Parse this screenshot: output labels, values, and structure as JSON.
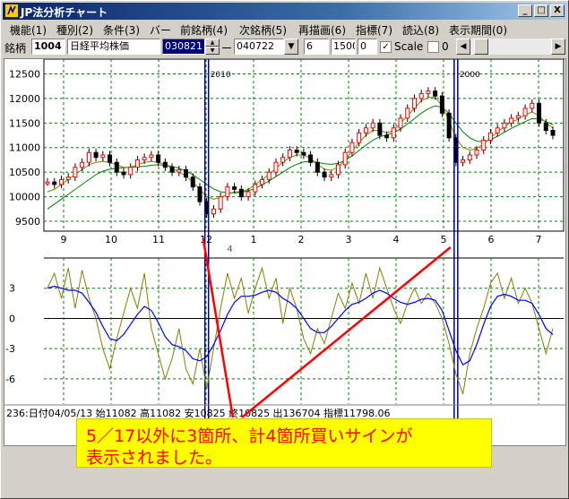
{
  "window": {
    "title": "JP法分析チャート"
  },
  "menu": [
    "機能(1)",
    "種別(2)",
    "条件(3)",
    "バー",
    "前銘柄(4)",
    "次銘柄(5)",
    "再描画(6)",
    "指標(7)",
    "読込(8)",
    "表示期間(0)"
  ],
  "toolbar": {
    "ticker_label": "銘柄",
    "code": "1004",
    "name": "日経平均株価",
    "date_from": "030821",
    "dash": "ー",
    "date_to": "040722",
    "period": "6",
    "value1": "1500",
    "value2": "0",
    "scale_label": "Scale",
    "scale_checked": true,
    "opt_value": "0",
    "check_mark": "✓",
    "arrow_left": "◀",
    "arrow_right": "▶",
    "dropdown_arrow": "▼",
    "spin_up": "▲",
    "spin_down": "▼"
  },
  "window_buttons": [
    "_",
    "□",
    "X"
  ],
  "chart_data": {
    "type": "line",
    "price_axis": {
      "ticks": [
        "12500",
        "12000",
        "11500",
        "11000",
        "10500",
        "10000",
        "9500"
      ],
      "range": [
        9300,
        12800
      ]
    },
    "x_ticks": [
      "9",
      "10",
      "11",
      "12",
      "1",
      "2",
      "3",
      "4",
      "5",
      "6",
      "7"
    ],
    "year_mark": "4",
    "signal_labels": [
      "2010",
      "2000"
    ],
    "oscillator_axis": {
      "ticks": [
        "3",
        "0",
        "-3",
        "-6"
      ],
      "range": [
        -8.5,
        6
      ]
    },
    "price_close": [
      10300,
      10250,
      10350,
      10400,
      10600,
      10700,
      10900,
      10800,
      10850,
      10700,
      10500,
      10450,
      10600,
      10750,
      10800,
      10850,
      10700,
      10600,
      10500,
      10550,
      10400,
      10200,
      9900,
      9650,
      9750,
      10000,
      10200,
      10150,
      10000,
      10100,
      10250,
      10350,
      10500,
      10700,
      10800,
      10950,
      10900,
      10850,
      10700,
      10500,
      10400,
      10450,
      10650,
      10900,
      11100,
      11300,
      11400,
      11500,
      11250,
      11200,
      11400,
      11600,
      11800,
      12000,
      12100,
      12150,
      12050,
      11700,
      11200,
      10700,
      10750,
      10850,
      10950,
      11150,
      11300,
      11400,
      11500,
      11600,
      11650,
      11800,
      11900,
      11500,
      11350,
      11250
    ],
    "ma_short": [
      10100,
      10150,
      10250,
      10350,
      10450,
      10550,
      10650,
      10700,
      10720,
      10700,
      10650,
      10600,
      10600,
      10650,
      10700,
      10720,
      10700,
      10650,
      10580,
      10500,
      10420,
      10300,
      10150,
      10000,
      9950,
      9980,
      10050,
      10100,
      10100,
      10150,
      10250,
      10350,
      10450,
      10580,
      10700,
      10800,
      10850,
      10850,
      10780,
      10660,
      10560,
      10540,
      10600,
      10750,
      10930,
      11100,
      11250,
      11350,
      11350,
      11300,
      11350,
      11500,
      11650,
      11800,
      11950,
      12020,
      12020,
      11850,
      11550,
      11200,
      11000,
      10950,
      10980,
      11080,
      11200,
      11320,
      11420,
      11520,
      11580,
      11670,
      11720,
      11650,
      11500,
      11400
    ],
    "ma_long": [
      9750,
      9850,
      9950,
      10050,
      10150,
      10250,
      10350,
      10450,
      10520,
      10560,
      10580,
      10590,
      10600,
      10610,
      10620,
      10640,
      10650,
      10640,
      10620,
      10580,
      10520,
      10450,
      10350,
      10250,
      10160,
      10100,
      10080,
      10080,
      10090,
      10120,
      10170,
      10240,
      10320,
      10410,
      10500,
      10590,
      10660,
      10710,
      10720,
      10700,
      10670,
      10660,
      10680,
      10740,
      10830,
      10940,
      11050,
      11150,
      11220,
      11260,
      11300,
      11380,
      11480,
      11590,
      11700,
      11790,
      11850,
      11820,
      11700,
      11500,
      11320,
      11200,
      11130,
      11120,
      11160,
      11230,
      11310,
      11390,
      11460,
      11530,
      11590,
      11580,
      11530,
      11470
    ],
    "osc_fast": [
      3,
      4.5,
      2,
      5,
      1,
      4.8,
      2,
      0,
      -3,
      -5,
      -2,
      0.5,
      3,
      1,
      4.5,
      -1,
      -3.5,
      -6,
      -4,
      -1,
      -5,
      -6.5,
      -3,
      -7,
      -3,
      1,
      4.5,
      2,
      4,
      0.5,
      3,
      5,
      2,
      4,
      -0.5,
      3,
      1,
      -2,
      -3.5,
      -1,
      -2.5,
      0,
      2.5,
      1,
      3.5,
      1.5,
      4.5,
      2,
      5,
      3,
      1,
      -0.5,
      1.5,
      3,
      1.5,
      2.5,
      1.5,
      0,
      -2.5,
      -5.5,
      -7.5,
      -3.5,
      -1,
      1,
      3.5,
      4.5,
      2,
      4,
      1.5,
      3,
      1.5,
      -1,
      -3.5,
      -1
    ],
    "osc_slow": [
      3,
      3.2,
      3,
      2.8,
      2.8,
      2.5,
      1.6,
      0.6,
      -0.8,
      -2,
      -2.2,
      -1.6,
      -0.6,
      0.4,
      1.2,
      0.8,
      -0.4,
      -1.8,
      -2.6,
      -2.8,
      -3.2,
      -4,
      -4.2,
      -3.8,
      -2.6,
      -1.2,
      0.4,
      1.6,
      2.2,
      2.2,
      2.3,
      2.6,
      2.8,
      2.6,
      2,
      1.6,
      1,
      0,
      -1,
      -1.4,
      -1.4,
      -0.8,
      0,
      0.8,
      1.4,
      1.6,
      2,
      2.5,
      2.8,
      2.5,
      2,
      1.6,
      1.4,
      1.6,
      1.9,
      2,
      1.8,
      0.8,
      -1.2,
      -3.2,
      -4.6,
      -4.2,
      -2.6,
      -0.6,
      1.2,
      2.2,
      2.4,
      2.2,
      1.8,
      1.8,
      1.5,
      0.4,
      -1,
      -1.6
    ]
  },
  "status_line": "236:日付04/05/13 始11082 高11082 安10825 終10825 出136704 指標11798.06",
  "annotation": {
    "line1": "5／17以外に3箇所、計4箇所買いサインが",
    "line2": "表示されました。"
  },
  "colors": {
    "annotation_bg": "#ffff00",
    "annotation_text": "#ff0000",
    "fast_osc": "#808000",
    "slow_osc": "#0000ff",
    "ma_short": "#808000",
    "ma_long": "#008000",
    "signal": "#00008b",
    "grid": "#008000"
  }
}
